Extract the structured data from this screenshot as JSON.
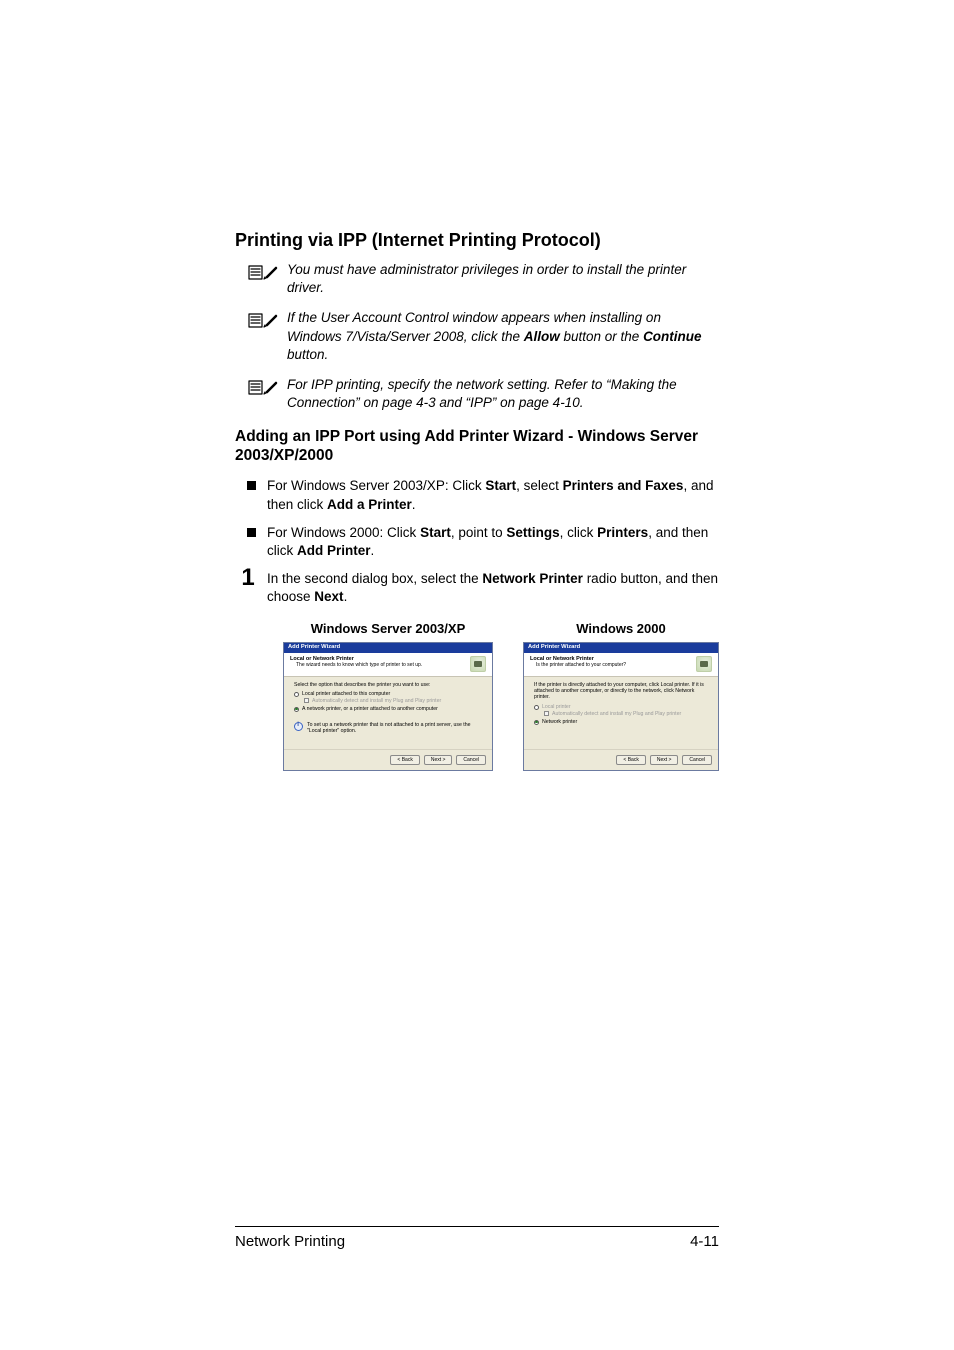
{
  "title": "Printing via IPP (Internet Printing Protocol)",
  "notes": [
    {
      "parts": [
        {
          "t": "You must have administrator privileges in order to install the printer driver.",
          "b": false
        }
      ]
    },
    {
      "parts": [
        {
          "t": "If the User Account Control window appears when installing on Windows 7/Vista/Server 2008, click the ",
          "b": false
        },
        {
          "t": "Allow",
          "b": true
        },
        {
          "t": " button or the ",
          "b": false
        },
        {
          "t": "Continue",
          "b": true
        },
        {
          "t": " button.",
          "b": false
        }
      ]
    },
    {
      "parts": [
        {
          "t": "For IPP printing, specify the network setting. Refer to “Making the Connection” on page 4-3 and “IPP” on page 4-10.",
          "b": false
        }
      ]
    }
  ],
  "subheading": "Adding an IPP Port using Add Printer Wizard - Windows Server 2003/XP/2000",
  "bullets": [
    [
      {
        "t": "For Windows Server 2003/XP: Click ",
        "b": false
      },
      {
        "t": "Start",
        "b": true
      },
      {
        "t": ", select ",
        "b": false
      },
      {
        "t": "Printers and Faxes",
        "b": true
      },
      {
        "t": ", and then click ",
        "b": false
      },
      {
        "t": "Add a Printer",
        "b": true
      },
      {
        "t": ".",
        "b": false
      }
    ],
    [
      {
        "t": "For Windows 2000: Click ",
        "b": false
      },
      {
        "t": "Start",
        "b": true
      },
      {
        "t": ", point to ",
        "b": false
      },
      {
        "t": "Settings",
        "b": true
      },
      {
        "t": ", click ",
        "b": false
      },
      {
        "t": "Printers",
        "b": true
      },
      {
        "t": ", and then click ",
        "b": false
      },
      {
        "t": "Add Printer",
        "b": true
      },
      {
        "t": ".",
        "b": false
      }
    ]
  ],
  "step": {
    "num": "1",
    "parts": [
      {
        "t": "In the second dialog box, select the ",
        "b": false
      },
      {
        "t": "Network Printer",
        "b": true
      },
      {
        "t": " radio button, and then choose ",
        "b": false
      },
      {
        "t": "Next",
        "b": true
      },
      {
        "t": ".",
        "b": false
      }
    ]
  },
  "col_heads": {
    "left": "Windows Server 2003/XP",
    "right": "Windows 2000"
  },
  "dialog_xp": {
    "titlebar": "Add Printer Wizard",
    "head_title": "Local or Network Printer",
    "head_sub": "The wizard needs to know which type of printer to set up.",
    "intro": "Select the option that describes the printer you want to use:",
    "opt_local": "Local printer attached to this computer",
    "opt_auto": "Automatically detect and install my Plug and Play printer",
    "opt_net": "A network printer, or a printer attached to another computer",
    "info": "To set up a network printer that is not attached to a print server, use the \"Local printer\" option.",
    "btn_back": "< Back",
    "btn_next": "Next >",
    "btn_cancel": "Cancel",
    "colors": {
      "titlebar": "#1a3c9c",
      "body_bg": "#ece9d8",
      "head_bg": "#ffffff"
    }
  },
  "dialog_2k": {
    "titlebar": "Add Printer Wizard",
    "head_title": "Local or Network Printer",
    "head_sub": "Is the printer attached to your computer?",
    "intro": "If the printer is directly attached to your computer, click Local printer. If it is attached to another computer, or directly to the network, click Network printer.",
    "opt_local": "Local printer",
    "opt_auto": "Automatically detect and install my Plug and Play printer",
    "opt_net": "Network printer",
    "btn_back": "< Back",
    "btn_next": "Next >",
    "btn_cancel": "Cancel",
    "colors": {
      "titlebar": "#1a3c9c",
      "body_bg": "#ece9d8",
      "head_bg": "#ffffff"
    }
  },
  "footer": {
    "left": "Network Printing",
    "right": "4-11"
  },
  "icon": {
    "stroke": "#000000",
    "width": 32,
    "height": 20
  }
}
